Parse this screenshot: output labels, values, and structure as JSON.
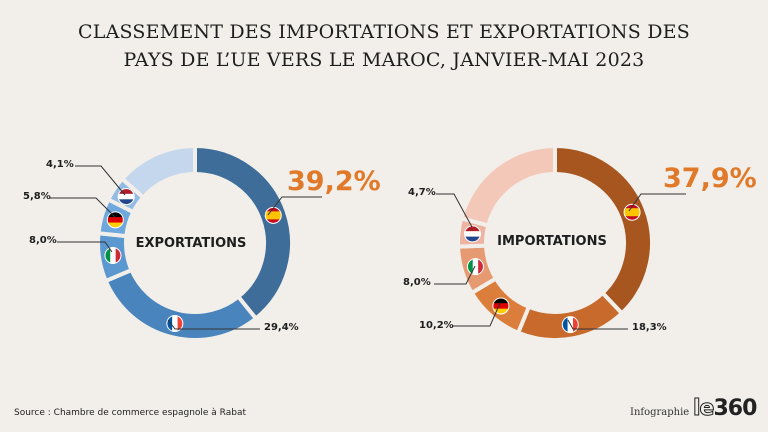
{
  "title": {
    "line1": "CLASSEMENT DES IMPORTATIONS ET EXPORTATIONS DES",
    "line2": "PAYS DE L’UE VERS LE MAROC, JANVIER-MAI 2023"
  },
  "chart_data": [
    {
      "type": "pie",
      "title": "EXPORTATIONS",
      "categories": [
        "Espagne",
        "France",
        "Italie",
        "Allemagne",
        "Pays-Bas",
        "Autres"
      ],
      "values": [
        39.2,
        29.4,
        8.0,
        5.8,
        4.1,
        13.5
      ],
      "labels": [
        "39,2%",
        "29,4%",
        "8,0%",
        "5,8%",
        "4,1%",
        ""
      ],
      "colors": [
        "#3e6d99",
        "#4a84bd",
        "#5b98d0",
        "#6ea8dc",
        "#93bce4",
        "#c4d7ec"
      ]
    },
    {
      "type": "pie",
      "title": "IMPORTATIONS",
      "categories": [
        "Espagne",
        "France",
        "Allemagne",
        "Italie",
        "Pays-Bas",
        "Autres"
      ],
      "values": [
        37.9,
        18.3,
        10.2,
        8.0,
        4.7,
        20.9
      ],
      "labels": [
        "37,9%",
        "18,3%",
        "10,2%",
        "8,0%",
        "4,7%",
        ""
      ],
      "colors": [
        "#a85620",
        "#c76a2b",
        "#db7e3c",
        "#e59a72",
        "#eeb4a2",
        "#f3c8b8"
      ]
    }
  ],
  "footer": {
    "source": "Source : Chambre de commerce espagnole à Rabat",
    "infographie": "Infographie",
    "logo_le": "le",
    "logo_num": "360"
  }
}
